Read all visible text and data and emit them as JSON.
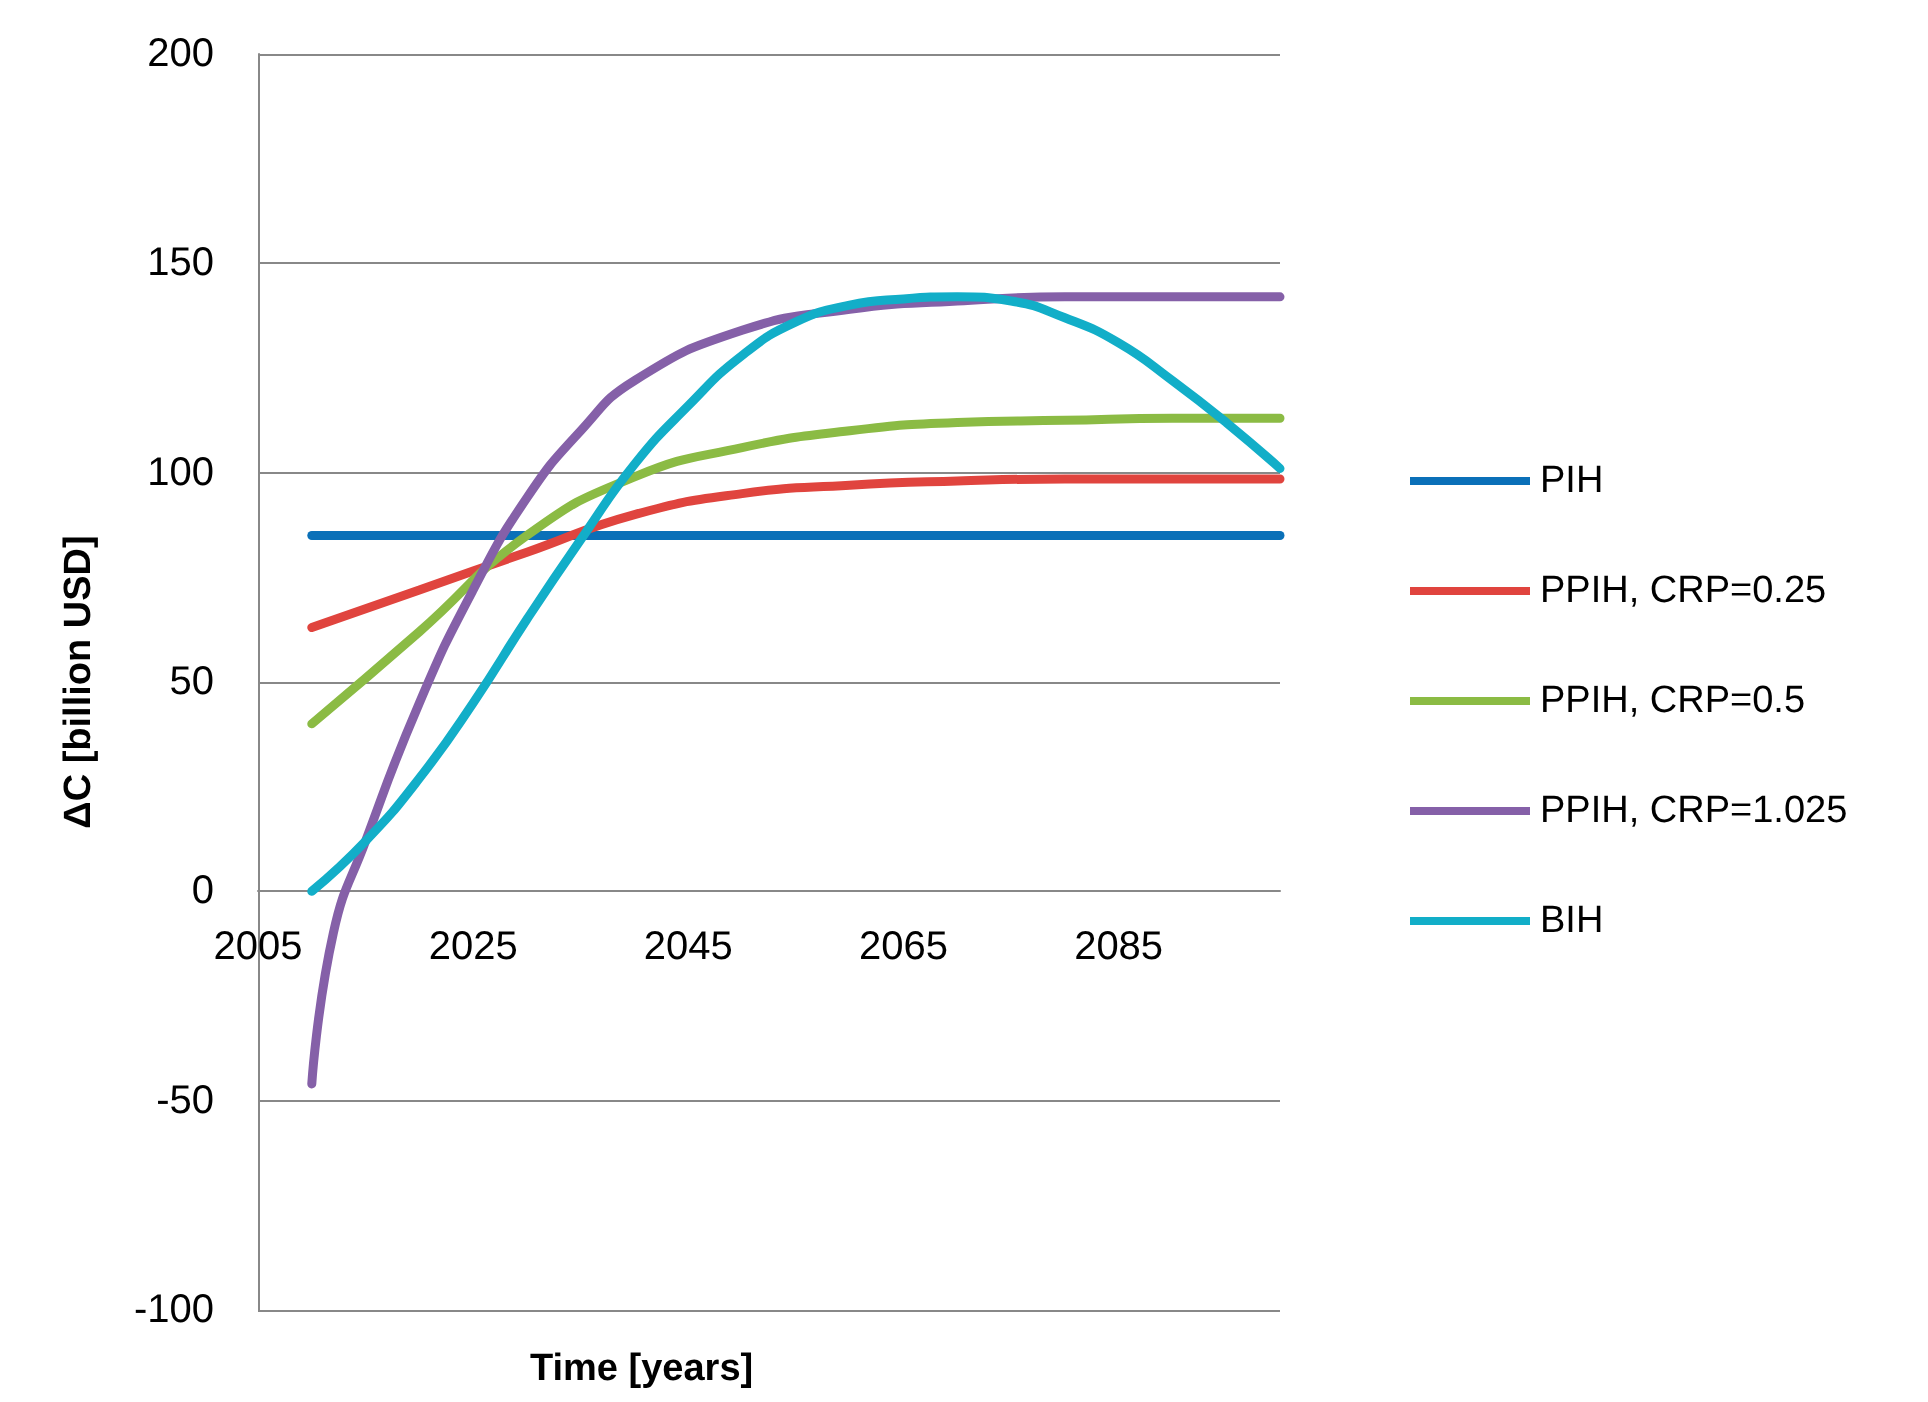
{
  "chart_data": {
    "type": "line",
    "xlabel": "Time [years]",
    "ylabel": "ΔC [billion USD]",
    "xlim": [
      2005,
      2100
    ],
    "xticks": [
      2005,
      2025,
      2045,
      2065,
      2085
    ],
    "ylim": [
      -100,
      200
    ],
    "yticks": [
      -100,
      -50,
      0,
      50,
      100,
      150,
      200
    ],
    "grid": "y",
    "legend": "right",
    "marker": "none",
    "line_style": "solid",
    "series": [
      {
        "name": "PIH",
        "color": "#0a70b8",
        "x": [
          2010,
          2100
        ],
        "values": [
          85,
          85
        ]
      },
      {
        "name": "PPIH, CRP=0.25",
        "color": "#e0443e",
        "x": [
          2010,
          2020,
          2030,
          2040,
          2050,
          2060,
          2070,
          2080,
          2090,
          2100
        ],
        "values": [
          63,
          72,
          81,
          90,
          95,
          97,
          98,
          98.5,
          98.5,
          98.5
        ]
      },
      {
        "name": "PPIH, CRP=0.5",
        "color": "#8bbb44",
        "x": [
          2010,
          2020,
          2030,
          2040,
          2050,
          2060,
          2070,
          2080,
          2090,
          2100
        ],
        "values": [
          40,
          62,
          85,
          99,
          106,
          110,
          112,
          112.5,
          113,
          113
        ]
      },
      {
        "name": "PPIH, CRP=1.025",
        "color": "#8560a8",
        "x": [
          2010,
          2012,
          2015,
          2020,
          2025,
          2030,
          2035,
          2040,
          2050,
          2060,
          2070,
          2080,
          2090,
          2100
        ],
        "values": [
          -46,
          -10,
          12,
          45,
          72,
          94,
          110,
          122,
          134,
          139,
          141,
          142,
          142,
          142
        ]
      },
      {
        "name": "BIH",
        "color": "#12aec8",
        "x": [
          2010,
          2015,
          2020,
          2025,
          2030,
          2035,
          2040,
          2045,
          2050,
          2055,
          2060,
          2065,
          2070,
          2075,
          2080,
          2085,
          2090,
          2095,
          2100
        ],
        "values": [
          0,
          12,
          27,
          45,
          65,
          84,
          102,
          116,
          128,
          136,
          140,
          141.5,
          142,
          141,
          137,
          131,
          122,
          112,
          101
        ]
      }
    ]
  }
}
